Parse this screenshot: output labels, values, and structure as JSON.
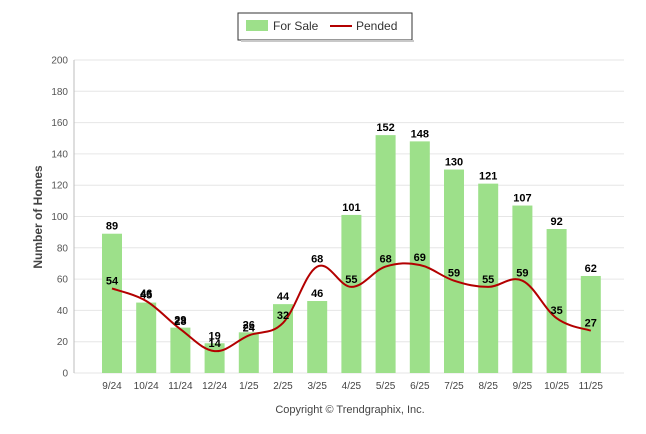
{
  "chart_data": {
    "type": "bar",
    "categories": [
      "9/24",
      "10/24",
      "11/24",
      "12/24",
      "1/25",
      "2/25",
      "3/25",
      "4/25",
      "5/25",
      "6/25",
      "7/25",
      "8/25",
      "9/25",
      "10/25",
      "11/25"
    ],
    "series": [
      {
        "name": "For Sale",
        "type": "bar",
        "values": [
          89,
          45,
          29,
          19,
          26,
          44,
          46,
          101,
          152,
          148,
          130,
          121,
          107,
          92,
          62
        ]
      },
      {
        "name": "Pended",
        "type": "line",
        "values": [
          54,
          46,
          28,
          14,
          24,
          32,
          68,
          55,
          68,
          69,
          59,
          55,
          59,
          35,
          27
        ]
      }
    ],
    "ylabel": "Number of Homes",
    "xlabel": "",
    "ylim": [
      0,
      200
    ],
    "yticks": [
      0,
      20,
      40,
      60,
      80,
      100,
      120,
      140,
      160,
      180,
      200
    ],
    "legend_position": "top-center",
    "colors": {
      "for_sale": "#9de08a",
      "pended": "#b30000"
    }
  },
  "footer": {
    "copyright": "Copyright © Trendgraphix, Inc."
  }
}
